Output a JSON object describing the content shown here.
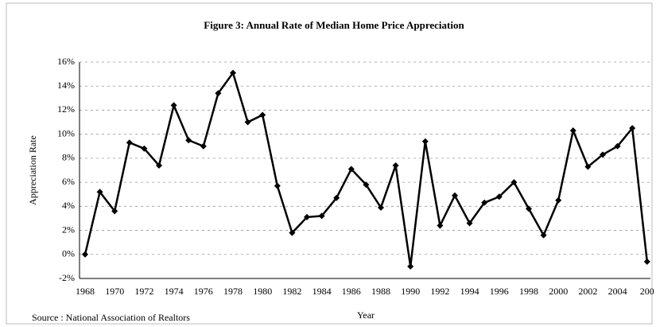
{
  "chart_data": {
    "type": "line",
    "title": "Figure 3: Annual Rate of Median Home Price Appreciation",
    "x_label": "Year",
    "y_label": "Appreciation Rate",
    "source": "Source : National Association of Realtors",
    "categories": [
      "1968",
      null,
      "1970",
      null,
      "1972",
      null,
      "1974",
      null,
      "1976",
      null,
      "1978",
      null,
      "1980",
      null,
      "1982",
      null,
      "1984",
      null,
      "1986",
      null,
      "1988",
      null,
      "1990",
      null,
      "1992",
      null,
      "1994",
      null,
      "1996",
      null,
      "1998",
      null,
      "2000",
      null,
      "2002",
      null,
      "2004",
      null,
      "200"
    ],
    "series": [
      {
        "name": "Appreciation Rate",
        "color": "#000000",
        "values": [
          0,
          5.2,
          3.6,
          9.3,
          8.8,
          7.4,
          12.4,
          9.5,
          9.0,
          13.4,
          15.1,
          11.0,
          11.6,
          5.7,
          1.8,
          3.1,
          3.2,
          4.7,
          7.1,
          5.8,
          3.9,
          7.4,
          -1.0,
          9.4,
          2.4,
          4.9,
          2.6,
          4.3,
          4.8,
          6.0,
          3.8,
          1.6,
          4.5,
          10.3,
          7.3,
          8.3,
          9.0,
          10.5,
          -0.6
        ]
      }
    ],
    "ylim": [
      -2,
      16
    ],
    "yticks": [
      {
        "value": -2,
        "label": "-2%"
      },
      {
        "value": 0,
        "label": "0%"
      },
      {
        "value": 2,
        "label": "2%"
      },
      {
        "value": 4,
        "label": "4%"
      },
      {
        "value": 6,
        "label": "6%"
      },
      {
        "value": 8,
        "label": "8%"
      },
      {
        "value": 10,
        "label": "10%"
      },
      {
        "value": 12,
        "label": "12%"
      },
      {
        "value": 14,
        "label": "14%"
      },
      {
        "value": 16,
        "label": "16%"
      }
    ],
    "grid": true
  }
}
